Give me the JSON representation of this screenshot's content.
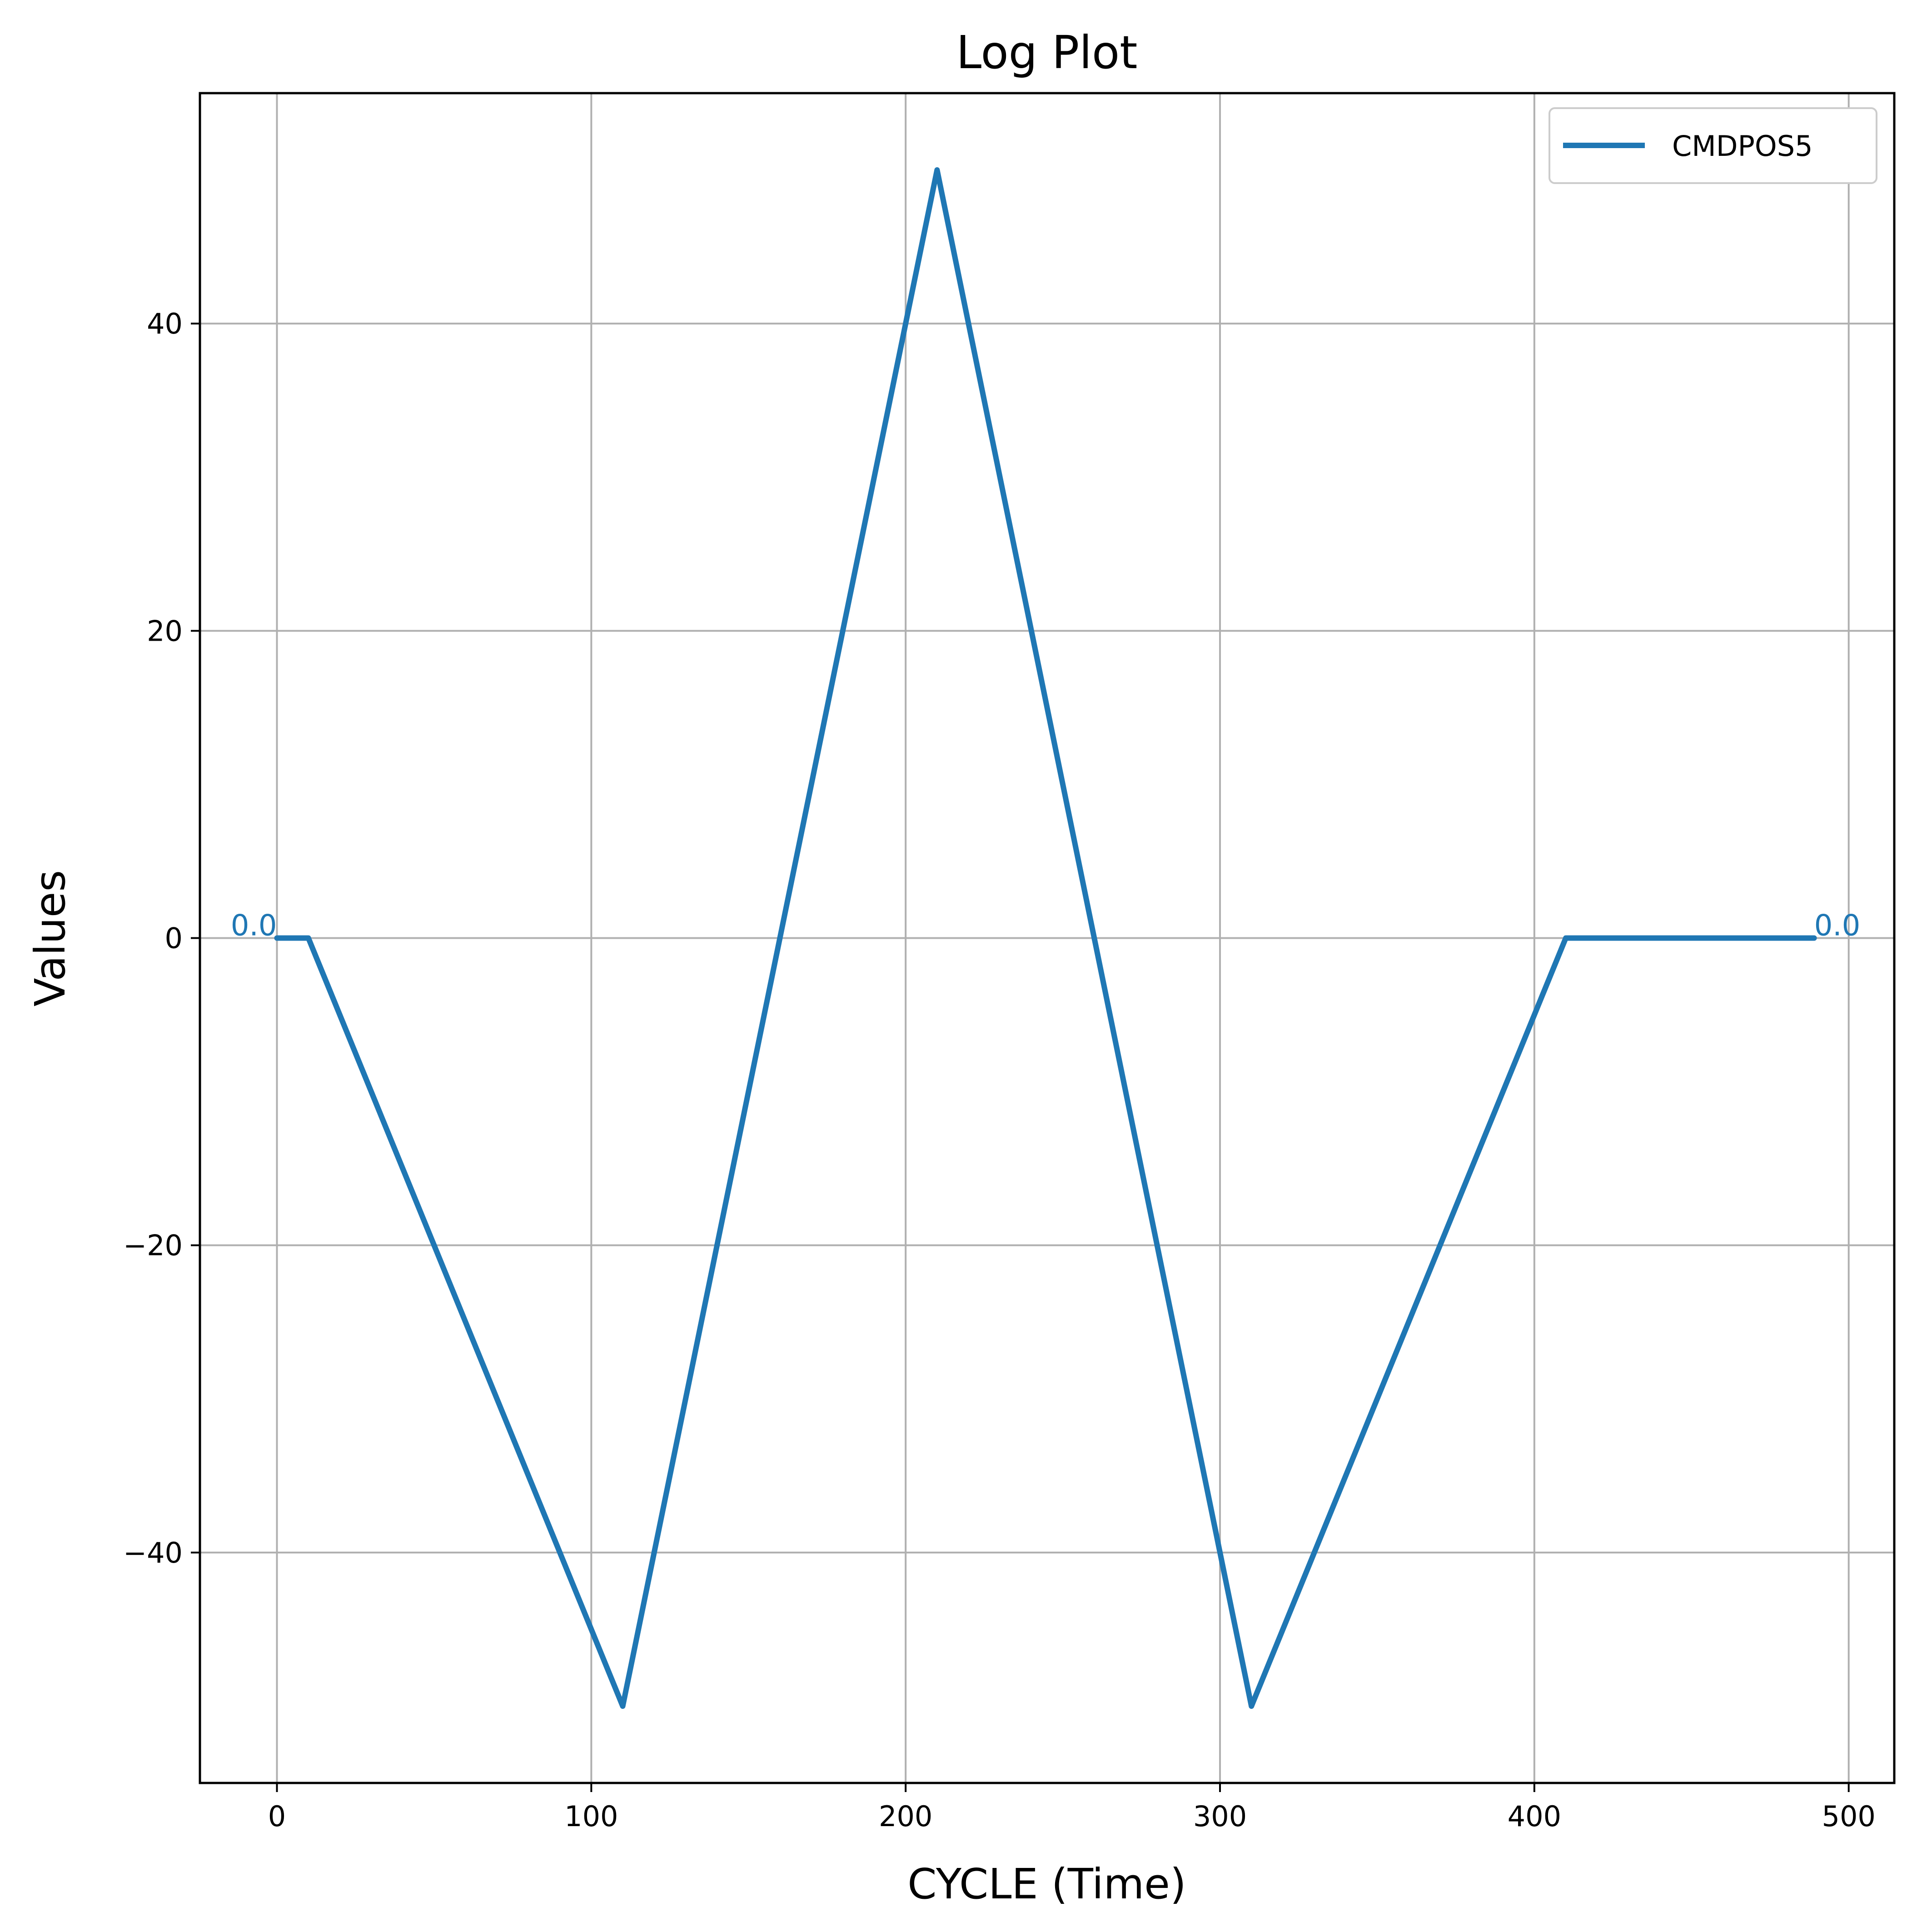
{
  "chart_data": {
    "type": "line",
    "title": "Log Plot",
    "xlabel": "CYCLE (Time)",
    "ylabel": "Values",
    "xlim": [
      -24.5,
      514.5
    ],
    "ylim": [
      -55,
      55
    ],
    "xticks": [
      0,
      100,
      200,
      300,
      400,
      500
    ],
    "yticks": [
      -40,
      -20,
      0,
      20,
      40
    ],
    "grid": true,
    "legend": {
      "position": "top-right"
    },
    "series": [
      {
        "name": "CMDPOS5",
        "color": "#1f77b4",
        "x": [
          0,
          10,
          110,
          210,
          310,
          410,
          489
        ],
        "y": [
          0,
          0,
          -50,
          50,
          -50,
          0,
          0
        ]
      }
    ],
    "annotations": [
      {
        "text": "0.0",
        "x": 0,
        "y": 0,
        "anchor": "end"
      },
      {
        "text": "0.0",
        "x": 489,
        "y": 0,
        "anchor": "start"
      }
    ]
  }
}
